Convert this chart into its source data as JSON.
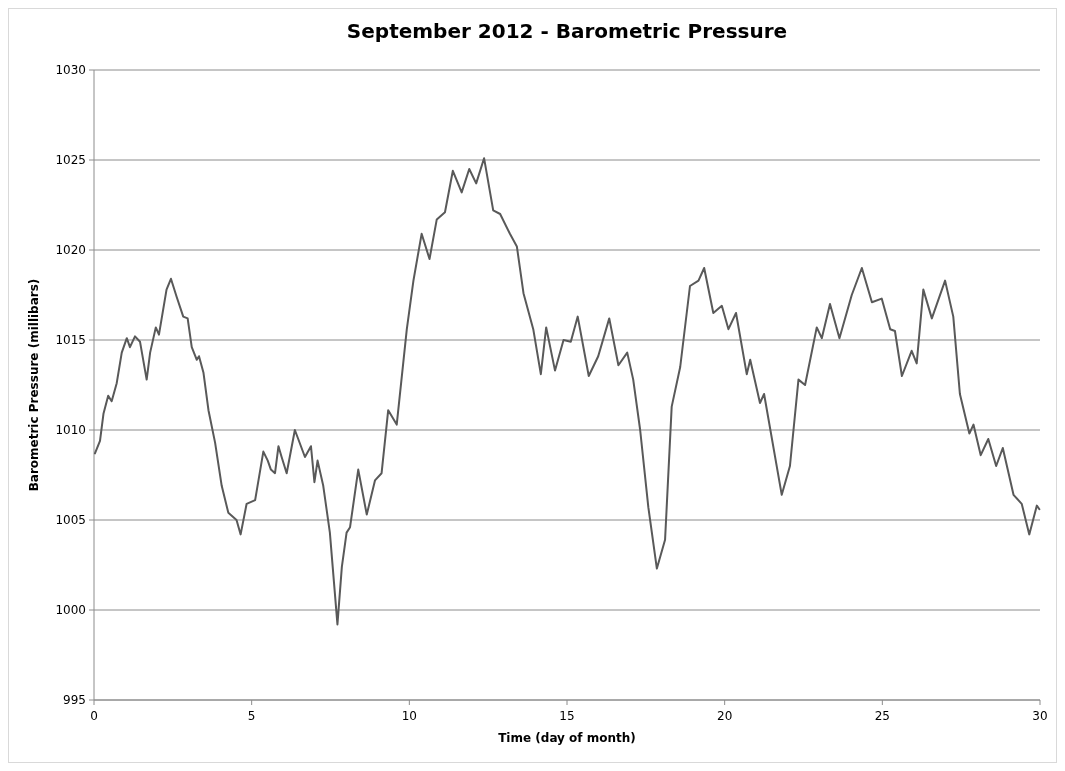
{
  "chart_data": {
    "type": "line",
    "title": "September 2012 - Barometric Pressure",
    "xlabel": "Time (day of month)",
    "ylabel": "Barometric Pressure (millibars)",
    "xlim": [
      0,
      30
    ],
    "xticks": [
      0,
      5,
      10,
      15,
      20,
      25,
      30
    ],
    "ylim": [
      995,
      1030
    ],
    "yticks": [
      995,
      1000,
      1005,
      1010,
      1015,
      1020,
      1025,
      1030
    ],
    "grid": "y",
    "series": [
      {
        "color": "#595959",
        "x": [
          0.03,
          0.19,
          0.3,
          0.45,
          0.56,
          0.72,
          0.88,
          1.04,
          1.14,
          1.3,
          1.46,
          1.67,
          1.78,
          1.96,
          2.06,
          2.3,
          2.44,
          2.62,
          2.83,
          2.97,
          3.1,
          3.26,
          3.33,
          3.47,
          3.63,
          3.84,
          4.05,
          4.26,
          4.52,
          4.65,
          4.84,
          5.11,
          5.37,
          5.51,
          5.61,
          5.74,
          5.85,
          5.95,
          6.11,
          6.37,
          6.69,
          6.88,
          6.99,
          7.09,
          7.27,
          7.48,
          7.72,
          7.86,
          8.01,
          8.12,
          8.38,
          8.65,
          8.91,
          9.12,
          9.33,
          9.6,
          9.92,
          10.13,
          10.39,
          10.64,
          10.87,
          11.13,
          11.38,
          11.66,
          11.9,
          12.12,
          12.37,
          12.66,
          12.88,
          13.19,
          13.41,
          13.62,
          13.93,
          14.17,
          14.34,
          14.62,
          14.89,
          15.12,
          15.34,
          15.69,
          15.99,
          16.34,
          16.63,
          16.91,
          17.1,
          17.32,
          17.58,
          17.85,
          18.11,
          18.32,
          18.59,
          18.9,
          19.17,
          19.35,
          19.64,
          19.91,
          20.12,
          20.36,
          20.7,
          20.81,
          21.12,
          21.25,
          21.81,
          22.07,
          22.34,
          22.55,
          22.92,
          23.08,
          23.34,
          23.64,
          24.03,
          24.35,
          24.67,
          24.98,
          25.25,
          25.4,
          25.62,
          25.93,
          26.09,
          26.3,
          26.57,
          26.99,
          27.25,
          27.46,
          27.76,
          27.89,
          28.12,
          28.36,
          28.61,
          28.82,
          29.16,
          29.42,
          29.66,
          29.9,
          29.98
        ],
        "values": [
          1008.7,
          1009.4,
          1010.9,
          1011.9,
          1011.6,
          1012.6,
          1014.3,
          1015.1,
          1014.6,
          1015.2,
          1014.9,
          1012.8,
          1014.3,
          1015.7,
          1015.3,
          1017.8,
          1018.4,
          1017.4,
          1016.3,
          1016.2,
          1014.6,
          1013.9,
          1014.1,
          1013.2,
          1011.1,
          1009.3,
          1006.9,
          1005.4,
          1005.0,
          1004.2,
          1005.9,
          1006.1,
          1008.8,
          1008.3,
          1007.8,
          1007.6,
          1009.1,
          1008.5,
          1007.6,
          1010.0,
          1008.5,
          1009.1,
          1007.1,
          1008.3,
          1006.9,
          1004.3,
          999.2,
          1002.4,
          1004.3,
          1004.6,
          1007.8,
          1005.3,
          1007.2,
          1007.6,
          1011.1,
          1010.3,
          1015.6,
          1018.3,
          1020.9,
          1019.5,
          1021.7,
          1022.1,
          1024.4,
          1023.2,
          1024.5,
          1023.7,
          1025.1,
          1022.2,
          1022.0,
          1020.9,
          1020.2,
          1017.6,
          1015.6,
          1013.1,
          1015.7,
          1013.3,
          1015.0,
          1014.9,
          1016.3,
          1013.0,
          1014.1,
          1016.2,
          1013.6,
          1014.3,
          1012.8,
          1010.0,
          1005.7,
          1002.3,
          1003.9,
          1011.3,
          1013.5,
          1018.0,
          1018.3,
          1019.0,
          1016.5,
          1016.9,
          1015.6,
          1016.5,
          1013.1,
          1013.9,
          1011.5,
          1012.0,
          1006.4,
          1008.0,
          1012.8,
          1012.5,
          1015.7,
          1015.1,
          1017.0,
          1015.1,
          1017.5,
          1019.0,
          1017.1,
          1017.3,
          1015.6,
          1015.5,
          1013.0,
          1014.4,
          1013.7,
          1017.8,
          1016.2,
          1018.3,
          1016.3,
          1012.0,
          1009.8,
          1010.3,
          1008.6,
          1009.5,
          1008.0,
          1009.0,
          1006.4,
          1005.9,
          1004.2,
          1005.8,
          1005.6
        ]
      }
    ]
  }
}
